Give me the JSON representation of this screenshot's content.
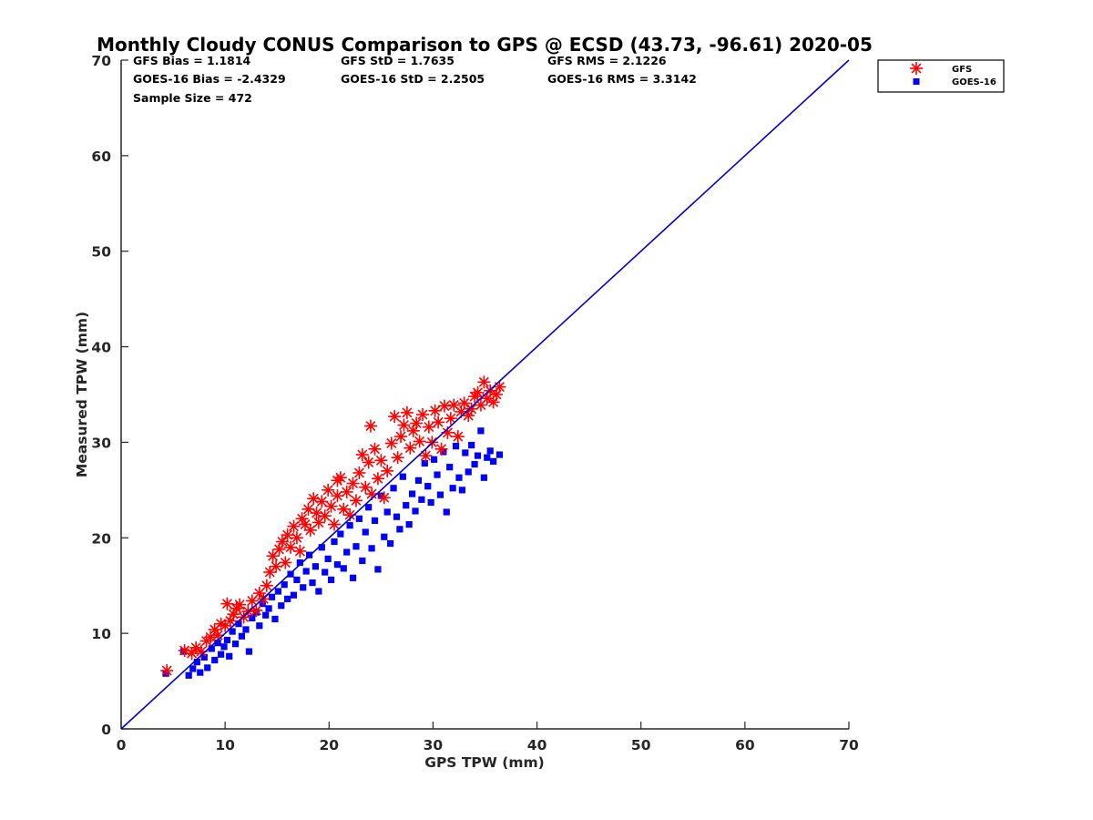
{
  "chart_data": {
    "type": "scatter",
    "title": "Monthly Cloudy CONUS Comparison to GPS @ ECSD (43.73, -96.61) 2020-05",
    "xlabel": "GPS TPW (mm)",
    "ylabel": "Measured TPW (mm)",
    "xlim": [
      0,
      70
    ],
    "ylim": [
      0,
      70
    ],
    "xticks": [
      "0",
      "10",
      "20",
      "30",
      "40",
      "50",
      "60",
      "70"
    ],
    "yticks": [
      "0",
      "10",
      "20",
      "30",
      "40",
      "50",
      "60",
      "70"
    ],
    "grid": false,
    "legend_position": "outside-top-right",
    "stats": [
      [
        "GFS Bias = 1.1814",
        "GFS StD = 1.7635",
        "GFS RMS = 2.1226"
      ],
      [
        "GOES-16 Bias = -2.4329",
        "GOES-16 StD = 2.2505",
        "GOES-16 RMS = 3.3142"
      ],
      [
        "Sample Size = 472"
      ]
    ],
    "reference_line": {
      "name": "1:1 line",
      "x": [
        0,
        70
      ],
      "y": [
        0,
        70
      ],
      "color": "#0000cc"
    },
    "series": [
      {
        "name": "GFS",
        "marker": "asterisk",
        "color": "#ff0000",
        "points": [
          [
            4.4,
            6.1
          ],
          [
            6.1,
            8.2
          ],
          [
            6.8,
            7.9
          ],
          [
            7.2,
            8.5
          ],
          [
            7.7,
            8.1
          ],
          [
            8.2,
            9.2
          ],
          [
            8.6,
            9.6
          ],
          [
            9.0,
            10.4
          ],
          [
            9.3,
            9.8
          ],
          [
            9.6,
            11.0
          ],
          [
            10.0,
            10.8
          ],
          [
            10.2,
            13.1
          ],
          [
            10.5,
            11.3
          ],
          [
            10.8,
            12.0
          ],
          [
            11.1,
            12.6
          ],
          [
            11.4,
            13.0
          ],
          [
            11.8,
            11.7
          ],
          [
            12.2,
            12.3
          ],
          [
            12.6,
            13.4
          ],
          [
            13.0,
            12.4
          ],
          [
            13.3,
            14.2
          ],
          [
            13.7,
            13.6
          ],
          [
            14.0,
            15.0
          ],
          [
            14.3,
            16.4
          ],
          [
            14.6,
            18.1
          ],
          [
            14.9,
            17.0
          ],
          [
            15.2,
            18.8
          ],
          [
            15.5,
            19.6
          ],
          [
            15.8,
            17.4
          ],
          [
            16.0,
            20.3
          ],
          [
            16.3,
            19.0
          ],
          [
            16.6,
            21.2
          ],
          [
            16.9,
            20.0
          ],
          [
            17.2,
            18.6
          ],
          [
            17.4,
            22.0
          ],
          [
            17.7,
            21.4
          ],
          [
            18.0,
            23.0
          ],
          [
            18.2,
            20.8
          ],
          [
            18.5,
            24.1
          ],
          [
            18.8,
            22.6
          ],
          [
            19.0,
            21.6
          ],
          [
            19.3,
            23.8
          ],
          [
            19.6,
            22.3
          ],
          [
            19.9,
            25.0
          ],
          [
            20.2,
            23.3
          ],
          [
            20.5,
            21.4
          ],
          [
            20.8,
            24.4
          ],
          [
            21.1,
            26.3
          ],
          [
            21.4,
            23.0
          ],
          [
            21.7,
            24.8
          ],
          [
            22.0,
            22.4
          ],
          [
            22.3,
            25.7
          ],
          [
            22.6,
            23.9
          ],
          [
            22.9,
            26.8
          ],
          [
            23.2,
            28.7
          ],
          [
            23.5,
            25.3
          ],
          [
            23.8,
            27.9
          ],
          [
            24.1,
            24.6
          ],
          [
            24.4,
            29.3
          ],
          [
            24.7,
            26.2
          ],
          [
            25.0,
            28.1
          ],
          [
            25.3,
            24.2
          ],
          [
            25.6,
            27.0
          ],
          [
            26.0,
            29.9
          ],
          [
            26.3,
            32.7
          ],
          [
            26.6,
            28.4
          ],
          [
            26.9,
            30.6
          ],
          [
            27.2,
            31.8
          ],
          [
            27.5,
            33.1
          ],
          [
            27.8,
            29.4
          ],
          [
            28.1,
            31.2
          ],
          [
            28.4,
            32.0
          ],
          [
            28.7,
            30.1
          ],
          [
            29.0,
            32.9
          ],
          [
            29.3,
            28.6
          ],
          [
            29.6,
            31.6
          ],
          [
            29.9,
            30.0
          ],
          [
            30.2,
            33.3
          ],
          [
            30.5,
            32.1
          ],
          [
            30.8,
            29.3
          ],
          [
            31.1,
            33.8
          ],
          [
            31.4,
            31.0
          ],
          [
            31.7,
            32.5
          ],
          [
            32.0,
            33.9
          ],
          [
            32.4,
            30.6
          ],
          [
            32.7,
            33.2
          ],
          [
            33.0,
            34.1
          ],
          [
            33.4,
            32.8
          ],
          [
            33.7,
            33.5
          ],
          [
            34.0,
            34.8
          ],
          [
            34.3,
            35.2
          ],
          [
            34.6,
            33.9
          ],
          [
            34.9,
            36.3
          ],
          [
            35.2,
            34.6
          ],
          [
            35.5,
            35.4
          ],
          [
            35.8,
            34.2
          ],
          [
            36.1,
            35.0
          ],
          [
            36.4,
            35.8
          ],
          [
            24.0,
            31.7
          ],
          [
            20.8,
            26.0
          ]
        ]
      },
      {
        "name": "GOES-16",
        "marker": "square",
        "color": "#0000ff",
        "points": [
          [
            4.3,
            5.8
          ],
          [
            6.0,
            8.1
          ],
          [
            6.5,
            5.6
          ],
          [
            6.9,
            6.3
          ],
          [
            7.3,
            7.0
          ],
          [
            7.6,
            5.9
          ],
          [
            8.0,
            7.5
          ],
          [
            8.3,
            6.4
          ],
          [
            8.7,
            8.4
          ],
          [
            9.0,
            7.2
          ],
          [
            9.3,
            9.0
          ],
          [
            9.6,
            7.8
          ],
          [
            9.9,
            8.6
          ],
          [
            10.2,
            9.3
          ],
          [
            10.4,
            7.6
          ],
          [
            10.7,
            10.2
          ],
          [
            11.0,
            8.9
          ],
          [
            11.3,
            11.0
          ],
          [
            11.6,
            9.7
          ],
          [
            12.0,
            10.4
          ],
          [
            12.3,
            8.1
          ],
          [
            12.6,
            11.6
          ],
          [
            13.0,
            12.2
          ],
          [
            13.3,
            10.8
          ],
          [
            13.6,
            13.1
          ],
          [
            13.9,
            11.9
          ],
          [
            14.2,
            12.6
          ],
          [
            14.5,
            13.8
          ],
          [
            14.8,
            11.5
          ],
          [
            15.1,
            14.4
          ],
          [
            15.4,
            12.9
          ],
          [
            15.7,
            15.1
          ],
          [
            16.0,
            13.6
          ],
          [
            16.3,
            16.2
          ],
          [
            16.6,
            14.0
          ],
          [
            16.9,
            15.6
          ],
          [
            17.2,
            17.4
          ],
          [
            17.5,
            14.8
          ],
          [
            17.8,
            16.5
          ],
          [
            18.1,
            18.2
          ],
          [
            18.4,
            15.3
          ],
          [
            18.7,
            17.0
          ],
          [
            19.0,
            14.4
          ],
          [
            19.3,
            19.0
          ],
          [
            19.6,
            16.4
          ],
          [
            19.9,
            17.8
          ],
          [
            20.2,
            15.6
          ],
          [
            20.5,
            19.6
          ],
          [
            20.8,
            17.2
          ],
          [
            21.1,
            20.4
          ],
          [
            21.4,
            16.8
          ],
          [
            21.7,
            18.5
          ],
          [
            22.0,
            21.3
          ],
          [
            22.3,
            15.8
          ],
          [
            22.6,
            19.1
          ],
          [
            22.9,
            22.0
          ],
          [
            23.2,
            17.6
          ],
          [
            23.5,
            20.6
          ],
          [
            23.8,
            23.2
          ],
          [
            24.1,
            18.9
          ],
          [
            24.4,
            21.8
          ],
          [
            24.7,
            16.7
          ],
          [
            25.0,
            24.4
          ],
          [
            25.3,
            20.1
          ],
          [
            25.6,
            22.7
          ],
          [
            25.9,
            19.4
          ],
          [
            26.2,
            25.2
          ],
          [
            26.5,
            22.2
          ],
          [
            26.8,
            20.9
          ],
          [
            27.1,
            26.4
          ],
          [
            27.4,
            23.4
          ],
          [
            27.7,
            21.4
          ],
          [
            28.0,
            24.6
          ],
          [
            28.3,
            22.8
          ],
          [
            28.6,
            26.0
          ],
          [
            28.9,
            24.0
          ],
          [
            29.2,
            27.8
          ],
          [
            29.5,
            25.4
          ],
          [
            29.8,
            23.7
          ],
          [
            30.1,
            28.2
          ],
          [
            30.4,
            26.6
          ],
          [
            30.7,
            24.5
          ],
          [
            31.0,
            29.0
          ],
          [
            31.3,
            22.7
          ],
          [
            31.6,
            27.4
          ],
          [
            31.9,
            25.2
          ],
          [
            32.2,
            29.6
          ],
          [
            32.5,
            26.3
          ],
          [
            32.8,
            25.0
          ],
          [
            33.1,
            28.9
          ],
          [
            33.4,
            26.9
          ],
          [
            33.7,
            29.7
          ],
          [
            34.0,
            27.7
          ],
          [
            34.3,
            28.6
          ],
          [
            34.6,
            31.2
          ],
          [
            34.9,
            26.3
          ],
          [
            35.2,
            28.4
          ],
          [
            35.5,
            29.1
          ],
          [
            35.8,
            28.0
          ],
          [
            36.4,
            28.7
          ]
        ]
      }
    ]
  }
}
